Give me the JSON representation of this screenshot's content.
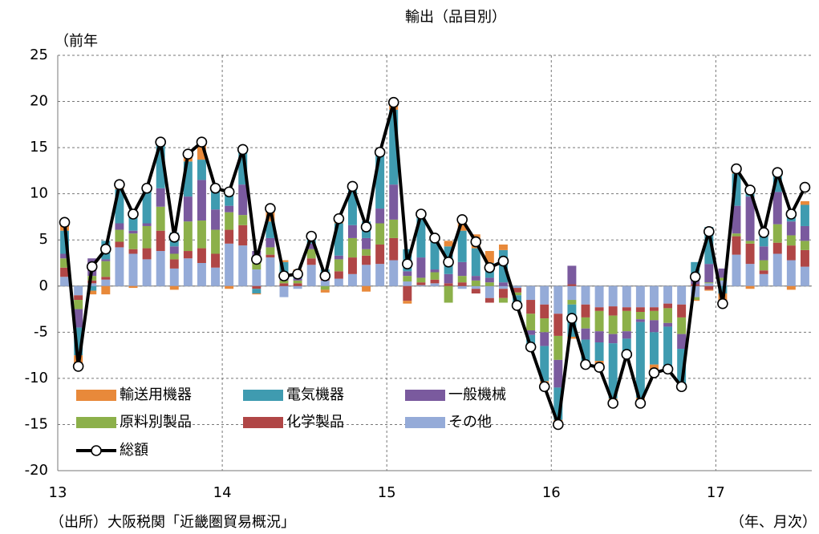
{
  "chart_data": {
    "type": "combo",
    "title": "輸出（品目別）",
    "y_label": "（前年",
    "source": "（出所）大阪税関「近畿圏貿易概況」",
    "x_unit": "（年、月次）",
    "categories": [
      "13",
      null,
      null,
      null,
      null,
      null,
      null,
      null,
      null,
      null,
      null,
      null,
      "14",
      null,
      null,
      null,
      null,
      null,
      null,
      null,
      null,
      null,
      null,
      null,
      "15",
      null,
      null,
      null,
      null,
      null,
      null,
      null,
      null,
      null,
      null,
      null,
      "16",
      null,
      null,
      null,
      null,
      null,
      null,
      null,
      null,
      null,
      null,
      null,
      "17",
      null,
      null,
      null,
      null,
      null,
      null
    ],
    "series": [
      {
        "name": "輸送用機器",
        "color": "#e8893a",
        "values": [
          0.9,
          -1.2,
          -0.4,
          -0.9,
          0.5,
          -0.2,
          0.3,
          0.2,
          -0.4,
          0.8,
          1.9,
          0.1,
          -0.3,
          0.1,
          -0.1,
          1.4,
          0.2,
          0.8,
          0.0,
          -0.3,
          0.5,
          0.0,
          -0.6,
          0.1,
          0.8,
          -0.3,
          0.0,
          0.1,
          0.6,
          1.5,
          1.5,
          1.3,
          0.6,
          0.0,
          -0.3,
          -0.6,
          -0.5,
          -0.2,
          -0.4,
          -0.7,
          -0.5,
          -0.2,
          -0.6,
          -0.9,
          -0.1,
          -0.1,
          -0.1,
          -0.1,
          -0.9,
          0.5,
          -0.3,
          0.0,
          0.2,
          -0.4,
          0.4
        ]
      },
      {
        "name": "電気機器",
        "color": "#3f9bb0",
        "values": [
          2.5,
          -3.0,
          -0.5,
          2.0,
          3.7,
          1.8,
          3.5,
          4.8,
          1.5,
          3.8,
          2.2,
          2.2,
          1.5,
          3.7,
          -0.5,
          1.8,
          1.8,
          0.2,
          0.8,
          0.4,
          3.5,
          4.2,
          1.8,
          6.0,
          8.1,
          2.4,
          4.7,
          3.3,
          3.0,
          3.4,
          3.0,
          1.6,
          3.5,
          -1.1,
          -1.0,
          -3.8,
          -3.5,
          -3.5,
          -2.3,
          -2.0,
          -6.0,
          -1.5,
          -8.2,
          -3.5,
          -4.5,
          -4.0,
          2.0,
          4.0,
          -0.8,
          3.5,
          1.0,
          1.5,
          1.9,
          1.2,
          2.3
        ]
      },
      {
        "name": "一般機械",
        "color": "#7a5a9e",
        "values": [
          0.5,
          -2.0,
          1.9,
          0.2,
          0.7,
          0.3,
          0.3,
          2.0,
          0.8,
          2.7,
          4.4,
          2.2,
          0.7,
          3.3,
          0.8,
          1.0,
          0.2,
          0.2,
          0.6,
          0.3,
          0.4,
          1.4,
          1.2,
          1.6,
          3.8,
          0.5,
          2.2,
          0.3,
          1.0,
          1.5,
          0.5,
          0.5,
          0.4,
          0.0,
          -0.5,
          -1.5,
          -3.0,
          2.0,
          -1.2,
          -1.2,
          -1.0,
          -0.8,
          -0.3,
          -1.3,
          -0.4,
          -1.6,
          0.4,
          2.0,
          1.0,
          3.0,
          4.8,
          1.5,
          3.5,
          1.5,
          1.6
        ]
      },
      {
        "name": "原料別製品",
        "color": "#8cb04a",
        "values": [
          1.0,
          -1.0,
          0.5,
          1.7,
          1.3,
          1.7,
          2.4,
          2.6,
          0.6,
          3.2,
          3.0,
          2.6,
          1.9,
          1.1,
          1.2,
          0.8,
          0.3,
          0.3,
          1.0,
          -0.4,
          1.3,
          2.1,
          0.7,
          2.3,
          2.0,
          0.6,
          0.5,
          0.8,
          -1.8,
          0.7,
          0.6,
          0.4,
          -0.5,
          -0.3,
          -1.8,
          -1.5,
          -2.6,
          -0.5,
          -1.2,
          -2.2,
          -2.0,
          -2.2,
          -0.8,
          -1.0,
          -1.6,
          -1.8,
          -0.3,
          0.1,
          0.3,
          0.3,
          0.3,
          1.1,
          2.0,
          1.1,
          1.0
        ]
      },
      {
        "name": "化学製品",
        "color": "#b04646",
        "values": [
          1.0,
          -0.5,
          0.3,
          0.3,
          0.6,
          0.5,
          1.2,
          2.2,
          1.0,
          0.8,
          1.6,
          1.5,
          1.5,
          2.2,
          -0.3,
          0.3,
          0.3,
          0.3,
          0.7,
          0.5,
          0.8,
          1.8,
          1.0,
          2.1,
          2.4,
          -1.6,
          0.3,
          0.4,
          0.3,
          0.4,
          -0.5,
          -0.5,
          -1.0,
          -0.5,
          -1.5,
          -1.5,
          -2.4,
          0.2,
          -1.4,
          -0.4,
          -1.0,
          -0.4,
          -0.5,
          -0.4,
          -0.5,
          -1.4,
          0.2,
          -0.4,
          0.0,
          2.0,
          2.2,
          0.4,
          1.2,
          1.6,
          1.8
        ]
      },
      {
        "name": "その他",
        "color": "#95abd8",
        "values": [
          1.0,
          -1.0,
          0.3,
          0.7,
          4.2,
          3.5,
          2.9,
          3.8,
          1.9,
          3.0,
          2.5,
          2.0,
          4.6,
          4.4,
          1.8,
          3.1,
          -1.2,
          -0.3,
          2.3,
          0.6,
          0.8,
          1.3,
          2.3,
          2.4,
          2.8,
          0.5,
          0.1,
          0.3,
          0.0,
          -0.3,
          -0.3,
          -1.3,
          -0.3,
          -0.2,
          -1.5,
          -2.0,
          -3.0,
          -1.5,
          -2.0,
          -2.3,
          -2.2,
          -2.3,
          -2.3,
          -2.3,
          -1.9,
          -2.0,
          -1.2,
          0.3,
          0.6,
          3.4,
          2.4,
          1.3,
          3.5,
          2.8,
          2.1
        ]
      }
    ],
    "total": {
      "name": "総額",
      "color": "#000000",
      "values": [
        6.9,
        -8.7,
        2.1,
        4.0,
        11.0,
        7.8,
        10.6,
        15.6,
        5.3,
        14.3,
        15.6,
        10.6,
        10.2,
        14.8,
        2.9,
        8.4,
        1.1,
        1.3,
        5.4,
        1.1,
        7.3,
        10.8,
        6.4,
        14.5,
        19.9,
        2.4,
        7.8,
        5.2,
        2.6,
        7.2,
        4.8,
        2.0,
        2.7,
        -2.1,
        -6.6,
        -10.9,
        -15.0,
        -3.5,
        -8.5,
        -8.8,
        -12.7,
        -7.4,
        -12.7,
        -9.4,
        -9.0,
        -10.9,
        1.0,
        5.9,
        -1.9,
        12.7,
        10.4,
        5.8,
        12.3,
        7.8,
        10.7
      ]
    },
    "ylim": [
      -20,
      25
    ],
    "yticks": [
      -20,
      -15,
      -10,
      -5,
      0,
      5,
      10,
      15,
      20,
      25
    ],
    "grid": true
  }
}
